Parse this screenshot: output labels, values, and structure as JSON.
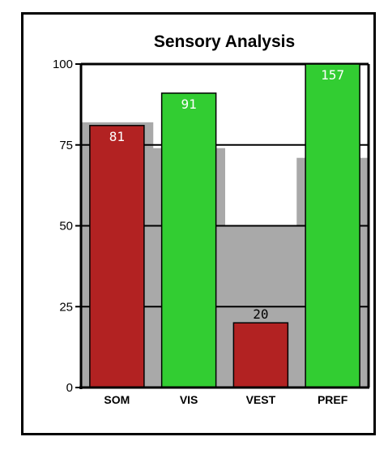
{
  "chart_data": {
    "type": "bar",
    "title": "Sensory Analysis",
    "categories": [
      "SOM",
      "VIS",
      "VEST",
      "PREF"
    ],
    "values": [
      81,
      91,
      20,
      157
    ],
    "data_labels": [
      "81",
      "91",
      "20",
      "157"
    ],
    "ylim": [
      0,
      100
    ],
    "yticks": [
      0,
      25,
      50,
      75,
      100
    ],
    "bar_colors": [
      "#b22222",
      "#32cd32",
      "#b22222",
      "#32cd32"
    ],
    "background_band": {
      "color": "#a9a9a9",
      "values": [
        82,
        74,
        50,
        71
      ]
    },
    "grid": true,
    "legend": "none",
    "xlabel": "",
    "ylabel": ""
  }
}
